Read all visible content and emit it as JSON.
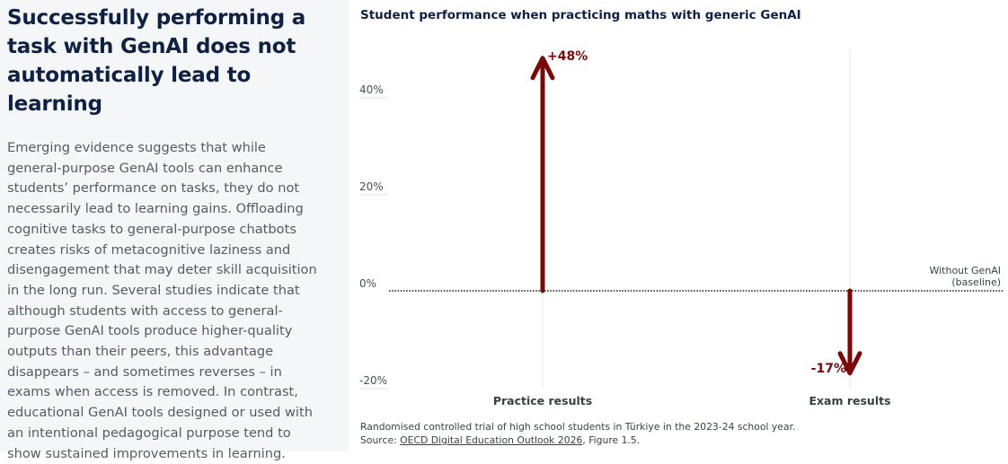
{
  "left": {
    "headline": "Successfully performing a task with GenAI does not automatically lead to learning",
    "body": "Emerging evidence suggests that while general-purpose GenAI tools can enhance students’ performance on tasks, they do not necessarily lead to learning gains. Offloading cognitive tasks to general-purpose chatbots creates risks of metacognitive laziness and disengagement that may deter skill acquisition in the long run. Several studies indicate that although students with access to general-purpose GenAI tools produce higher-quality outputs than their peers, this advantage disappears – and sometimes reverses – in exams when access is removed. In contrast,  educational GenAI tools designed or used with an intentional pedagogical purpose tend to show sustained improvements in learning."
  },
  "footnote": {
    "line1": "Randomised controlled trial of high school students in Türkiye in the 2023-24 school year.",
    "source_prefix": "Source: ",
    "source_link": "OECD Digital Education Outlook 2026",
    "source_suffix": ", Figure 1.5."
  },
  "colors": {
    "arrow": "#7a0a0a",
    "grid": "#e6e7ea",
    "baseline": "#222222"
  },
  "chart_data": {
    "type": "bar",
    "title": "Student performance when practicing maths with generic GenAI",
    "categories": [
      "Practice results",
      "Exam results"
    ],
    "values": [
      48,
      -17
    ],
    "value_labels": [
      "+48%",
      "-17%"
    ],
    "ylim": [
      -20,
      50
    ],
    "yticks": [
      40,
      20,
      0,
      -20
    ],
    "ytick_labels": [
      "40%",
      "20%",
      "0%",
      "-20%"
    ],
    "baseline_label_line1": "Without GenAI",
    "baseline_label_line2": "(baseline)",
    "marks": "arrows"
  }
}
